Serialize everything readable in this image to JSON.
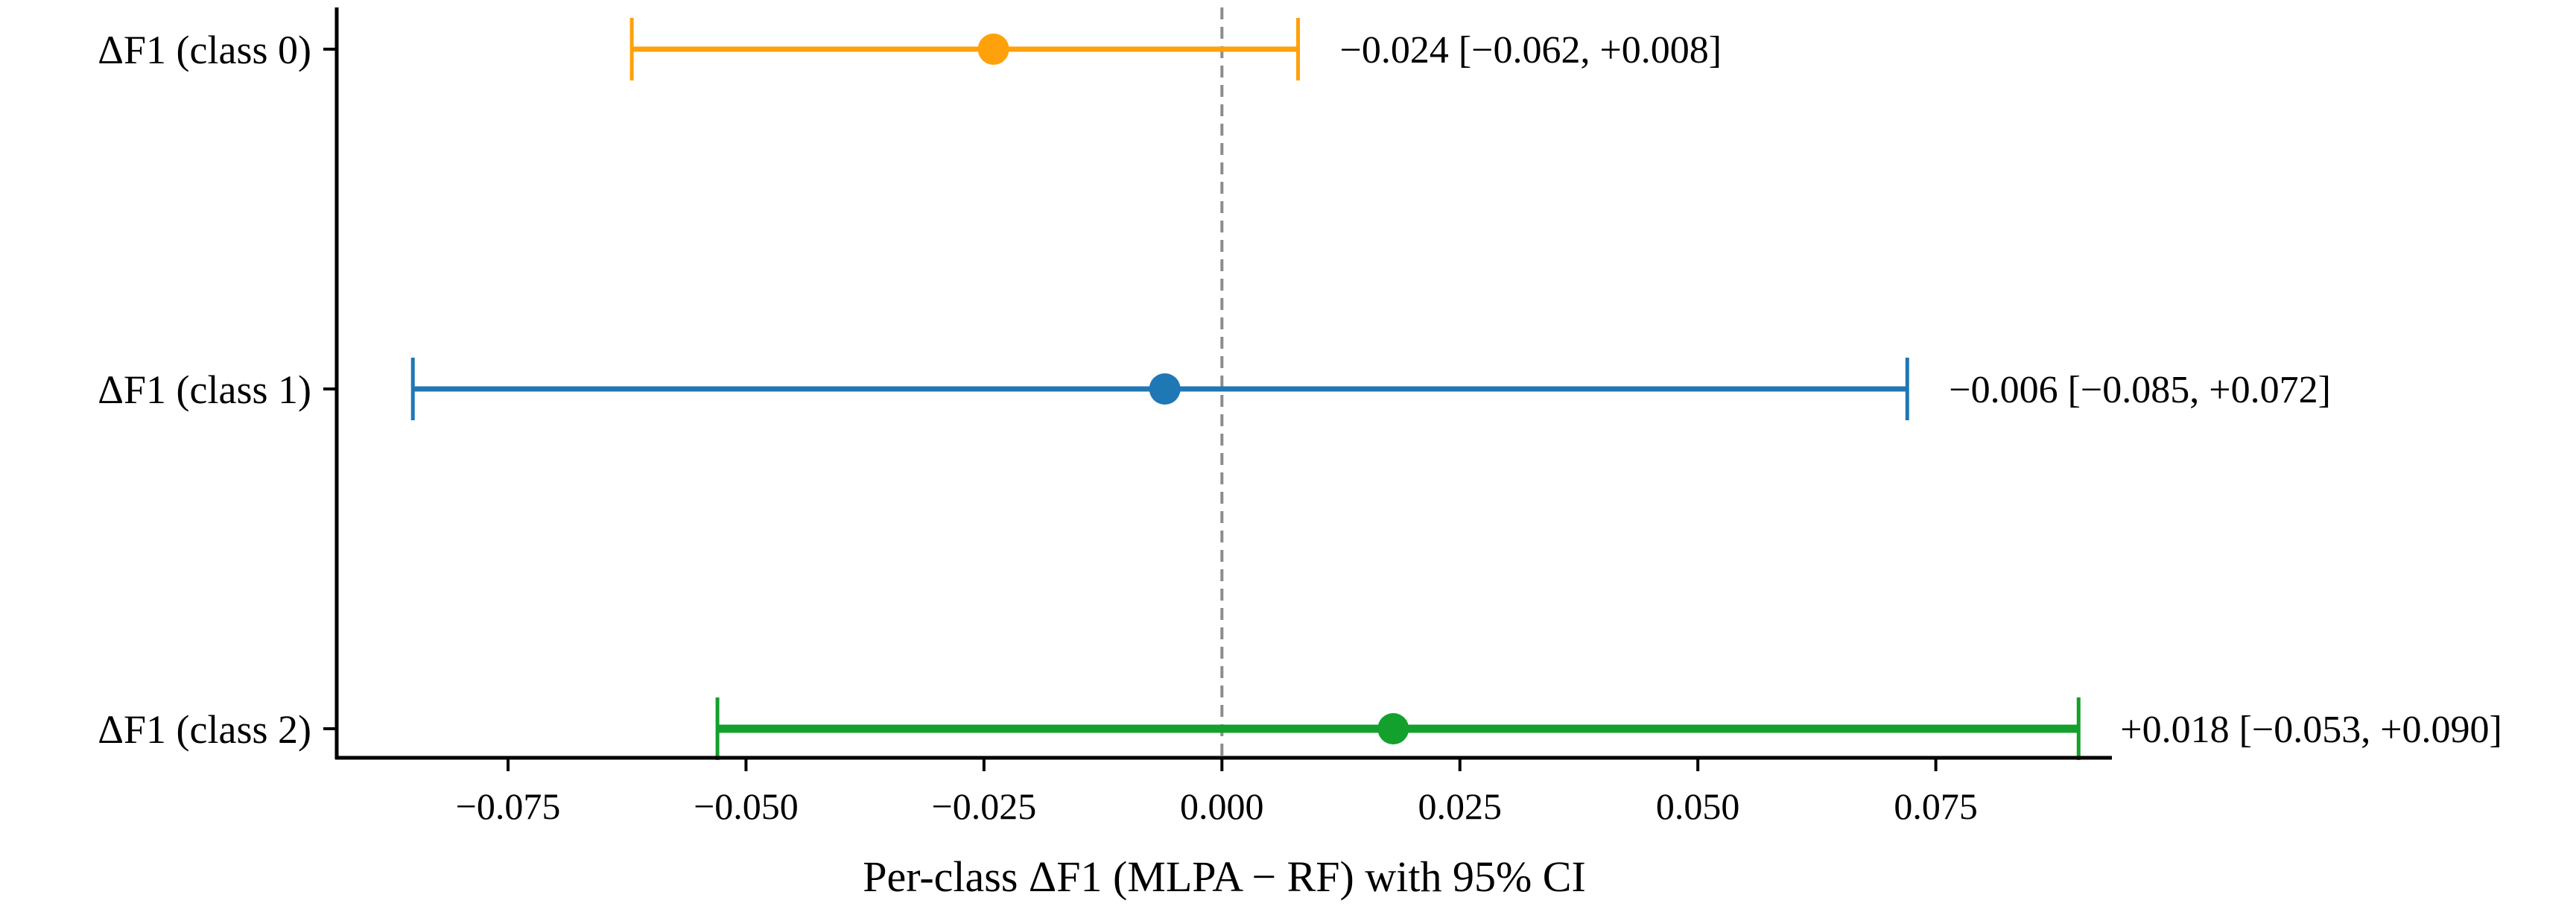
{
  "chart_data": {
    "type": "errorbar",
    "title": "",
    "xlabel": "Per-class ΔF1 (MLPA − RF) with 95% CI",
    "ylabel": "",
    "xlim": [
      -0.093,
      0.0935
    ],
    "xticks": [
      -0.075,
      -0.05,
      -0.025,
      0.0,
      0.025,
      0.05,
      0.075
    ],
    "xtick_labels": [
      "−0.075",
      "−0.050",
      "−0.025",
      "0.000",
      "0.025",
      "0.050",
      "0.075"
    ],
    "reference_line": {
      "x": 0.0,
      "style": "dashed",
      "color": "#8c8c8c"
    },
    "grid": false,
    "categories": [
      "ΔF1 (class 0)",
      "ΔF1 (class 1)",
      "ΔF1 (class 2)"
    ],
    "series": [
      {
        "category": "ΔF1 (class 0)",
        "value": -0.024,
        "ci_low": -0.062,
        "ci_high": 0.008,
        "color": "#ffa10a",
        "label": "−0.024 [−0.062, +0.008]",
        "emphasis": false
      },
      {
        "category": "ΔF1 (class 1)",
        "value": -0.006,
        "ci_low": -0.085,
        "ci_high": 0.072,
        "color": "#1f77b4",
        "label": "−0.006 [−0.085, +0.072]",
        "emphasis": false
      },
      {
        "category": "ΔF1 (class 2)",
        "value": 0.018,
        "ci_low": -0.053,
        "ci_high": 0.09,
        "color": "#13a02c",
        "label": "+0.018 [−0.053, +0.090]",
        "emphasis": true
      }
    ]
  }
}
